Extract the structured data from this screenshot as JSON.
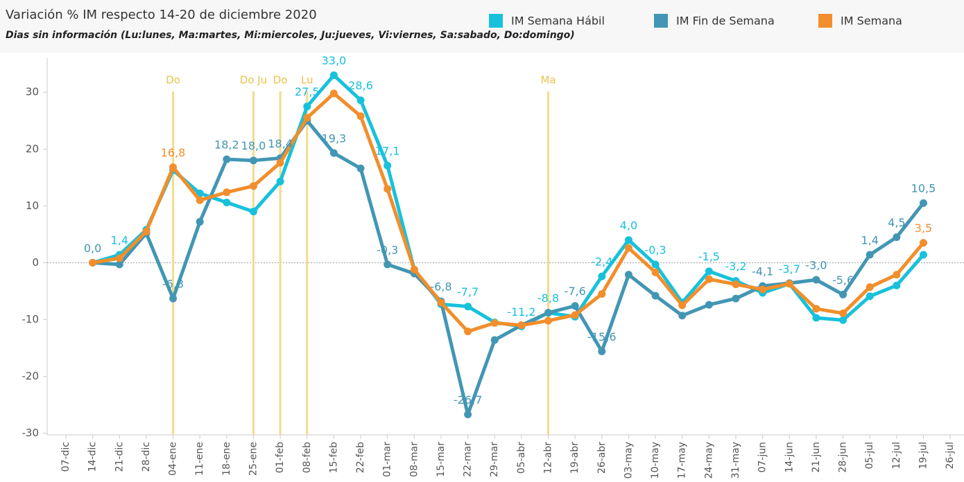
{
  "chart_data": {
    "type": "line",
    "title": "Variación % IM respecto 14-20 de diciembre 2020",
    "subtitle": "Dias sin información (Lu:lunes, Ma:martes, Mi:miercoles, Ju:jueves, Vi:viernes, Sa:sabado, Do:domingo)",
    "categories": [
      "07-dic",
      "14-dic",
      "21-dic",
      "28-dic",
      "04-ene",
      "11-ene",
      "18-ene",
      "25-ene",
      "01-feb",
      "08-feb",
      "15-feb",
      "22-feb",
      "01-mar",
      "08-mar",
      "15-mar",
      "22-mar",
      "29-mar",
      "05-abr",
      "12-abr",
      "19-abr",
      "26-abr",
      "03-may",
      "10-may",
      "17-may",
      "24-may",
      "31-may",
      "07-jun",
      "14-jun",
      "21-jun",
      "28-jun",
      "05-jul",
      "12-jul",
      "19-jul",
      "26-jul"
    ],
    "series": [
      {
        "name": "IM Semana Hábil",
        "color": "#17c1dc",
        "values": [
          null,
          0.0,
          1.4,
          5.8,
          16.3,
          12.2,
          10.6,
          9.0,
          14.3,
          27.5,
          33.0,
          28.6,
          17.1,
          -1.2,
          -7.3,
          -7.7,
          -10.5,
          -11.2,
          -8.8,
          -9.5,
          -2.4,
          4.0,
          -0.3,
          -7.0,
          -1.5,
          -3.2,
          -5.3,
          -3.7,
          -9.7,
          -10.1,
          -5.9,
          -4.0,
          1.4,
          null
        ],
        "value_labels": [
          null,
          null,
          "1,4",
          null,
          null,
          null,
          null,
          null,
          null,
          "27,5",
          "33,0",
          "28,6",
          "17,1",
          null,
          null,
          "-7,7",
          null,
          "-11,2",
          "-8,8",
          null,
          "-2,4",
          "4,0",
          "-0,3",
          null,
          "-1,5",
          "-3,2",
          null,
          "-3,7",
          null,
          null,
          null,
          null,
          null,
          null
        ]
      },
      {
        "name": "IM Fin de Semana",
        "color": "#4296b4",
        "values": [
          null,
          0.0,
          -0.3,
          5.2,
          -6.3,
          7.2,
          18.2,
          18.0,
          18.4,
          25.0,
          19.3,
          16.6,
          -0.3,
          -1.9,
          -6.8,
          -26.7,
          -13.6,
          -11.0,
          -8.8,
          -7.6,
          -15.6,
          -2.1,
          -5.8,
          -9.3,
          -7.4,
          -6.3,
          -4.1,
          -3.6,
          -3.0,
          -5.6,
          1.4,
          4.5,
          10.5,
          null
        ],
        "value_labels": [
          null,
          "0,0",
          null,
          null,
          "-6,3",
          null,
          "18,2",
          "18,0",
          "18,4",
          null,
          "19,3",
          null,
          "-0,3",
          null,
          "-6,8",
          "-26,7",
          null,
          null,
          null,
          "-7,6",
          "-15,6",
          null,
          null,
          null,
          null,
          null,
          "-4,1",
          null,
          "-3,0",
          "-5,6",
          "1,4",
          "4,5",
          "10,5",
          null
        ]
      },
      {
        "name": "IM Semana",
        "color": "#f28e2b",
        "values": [
          null,
          0.0,
          0.8,
          5.5,
          16.8,
          11.0,
          12.4,
          13.5,
          17.6,
          25.5,
          29.8,
          25.8,
          13.0,
          -1.2,
          -7.0,
          -12.1,
          -10.6,
          -11.0,
          -10.2,
          -9.2,
          -5.5,
          2.6,
          -1.7,
          -7.5,
          -2.9,
          -3.8,
          -4.7,
          -3.7,
          -8.1,
          -8.9,
          -4.3,
          -2.1,
          3.5,
          null
        ],
        "value_labels": [
          null,
          null,
          null,
          null,
          "16,8",
          null,
          null,
          null,
          null,
          null,
          null,
          null,
          null,
          null,
          null,
          null,
          null,
          null,
          null,
          null,
          null,
          null,
          null,
          null,
          null,
          null,
          null,
          null,
          null,
          null,
          null,
          null,
          "3,5",
          null
        ]
      }
    ],
    "annotations": [
      {
        "x": "04-ene",
        "label": "Do"
      },
      {
        "x": "25-ene",
        "label": "Do Ju"
      },
      {
        "x": "01-feb",
        "label": "Do"
      },
      {
        "x": "08-feb",
        "label": "Lu"
      },
      {
        "x": "12-abr",
        "label": "Ma"
      }
    ],
    "ylim": [
      -30.3,
      36
    ],
    "yticks": [
      -30,
      -20,
      -10,
      0,
      10,
      20,
      30
    ],
    "zero_line": true
  }
}
